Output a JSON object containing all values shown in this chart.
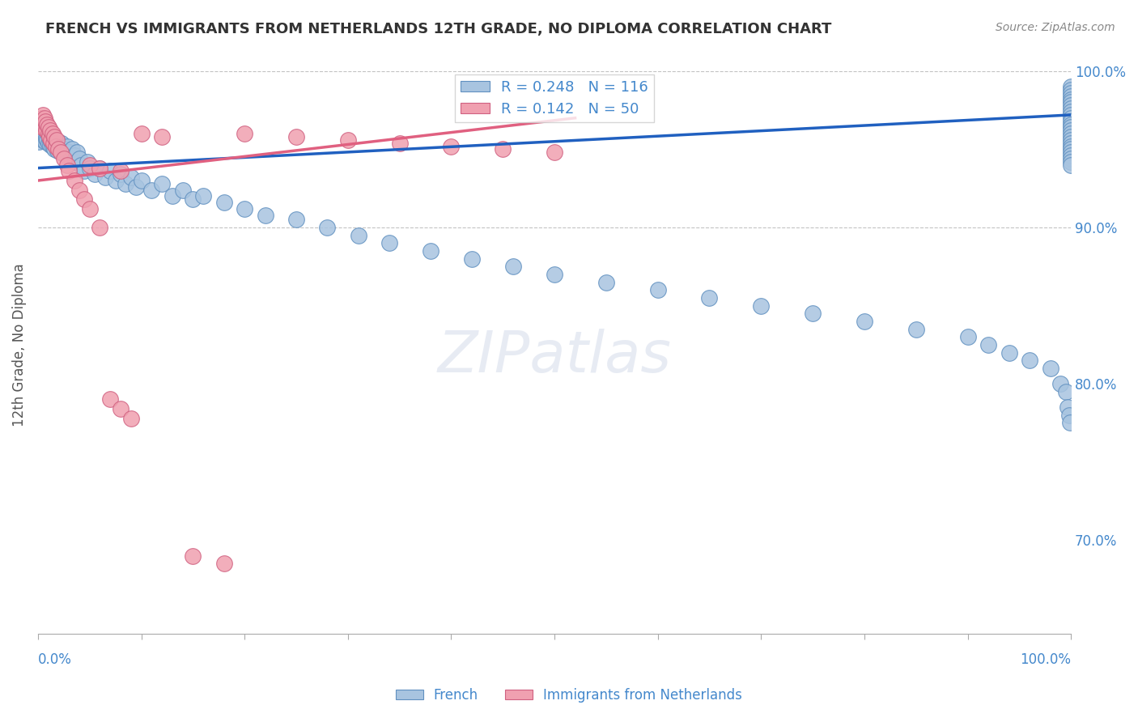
{
  "title": "FRENCH VS IMMIGRANTS FROM NETHERLANDS 12TH GRADE, NO DIPLOMA CORRELATION CHART",
  "source": "Source: ZipAtlas.com",
  "ylabel": "12th Grade, No Diploma",
  "right_yticks": [
    70.0,
    80.0,
    90.0,
    100.0
  ],
  "legend_entries": [
    {
      "label": "French",
      "color": "#a8c4e0",
      "R": 0.248,
      "N": 116
    },
    {
      "label": "Immigrants from Netherlands",
      "color": "#f0a0b0",
      "R": 0.142,
      "N": 50
    }
  ],
  "blue_line_color": "#2060c0",
  "pink_line_color": "#e06080",
  "scatter_blue": {
    "color": "#a8c4e0",
    "edge_color": "#6090c0",
    "x": [
      0.001,
      0.002,
      0.003,
      0.003,
      0.004,
      0.004,
      0.005,
      0.005,
      0.006,
      0.006,
      0.007,
      0.007,
      0.008,
      0.008,
      0.009,
      0.01,
      0.01,
      0.011,
      0.012,
      0.012,
      0.013,
      0.014,
      0.015,
      0.015,
      0.016,
      0.017,
      0.018,
      0.019,
      0.02,
      0.021,
      0.022,
      0.023,
      0.025,
      0.027,
      0.028,
      0.03,
      0.032,
      0.033,
      0.035,
      0.036,
      0.038,
      0.04,
      0.042,
      0.045,
      0.048,
      0.05,
      0.055,
      0.06,
      0.065,
      0.07,
      0.075,
      0.08,
      0.085,
      0.09,
      0.095,
      0.1,
      0.11,
      0.12,
      0.13,
      0.14,
      0.15,
      0.16,
      0.18,
      0.2,
      0.22,
      0.25,
      0.28,
      0.31,
      0.34,
      0.38,
      0.42,
      0.46,
      0.5,
      0.55,
      0.6,
      0.65,
      0.7,
      0.75,
      0.8,
      0.85,
      0.9,
      0.92,
      0.94,
      0.96,
      0.98,
      0.99,
      0.995,
      0.997,
      0.998,
      0.999,
      1.0,
      1.0,
      1.0,
      1.0,
      1.0,
      1.0,
      1.0,
      1.0,
      1.0,
      1.0,
      1.0,
      1.0,
      1.0,
      1.0,
      1.0,
      1.0,
      1.0,
      1.0,
      1.0,
      1.0,
      1.0,
      1.0,
      1.0,
      1.0,
      1.0,
      1.0
    ],
    "y": [
      0.955,
      0.96,
      0.958,
      0.962,
      0.957,
      0.963,
      0.956,
      0.961,
      0.958,
      0.964,
      0.955,
      0.96,
      0.957,
      0.963,
      0.956,
      0.954,
      0.959,
      0.957,
      0.953,
      0.96,
      0.955,
      0.952,
      0.958,
      0.954,
      0.95,
      0.956,
      0.953,
      0.949,
      0.955,
      0.951,
      0.948,
      0.954,
      0.95,
      0.946,
      0.952,
      0.948,
      0.944,
      0.95,
      0.946,
      0.942,
      0.948,
      0.944,
      0.94,
      0.936,
      0.942,
      0.938,
      0.934,
      0.938,
      0.932,
      0.936,
      0.93,
      0.934,
      0.928,
      0.932,
      0.926,
      0.93,
      0.924,
      0.928,
      0.92,
      0.924,
      0.918,
      0.92,
      0.916,
      0.912,
      0.908,
      0.905,
      0.9,
      0.895,
      0.89,
      0.885,
      0.88,
      0.875,
      0.87,
      0.865,
      0.86,
      0.855,
      0.85,
      0.845,
      0.84,
      0.835,
      0.83,
      0.825,
      0.82,
      0.815,
      0.81,
      0.8,
      0.795,
      0.785,
      0.78,
      0.775,
      0.99,
      0.988,
      0.986,
      0.984,
      0.982,
      0.98,
      0.978,
      0.976,
      0.974,
      0.972,
      0.97,
      0.968,
      0.966,
      0.964,
      0.962,
      0.96,
      0.958,
      0.956,
      0.954,
      0.952,
      0.95,
      0.948,
      0.946,
      0.944,
      0.942,
      0.94
    ]
  },
  "scatter_pink": {
    "color": "#f0a0b0",
    "edge_color": "#d06080",
    "x": [
      0.001,
      0.002,
      0.003,
      0.003,
      0.004,
      0.005,
      0.005,
      0.006,
      0.006,
      0.007,
      0.007,
      0.008,
      0.009,
      0.01,
      0.01,
      0.011,
      0.012,
      0.013,
      0.014,
      0.015,
      0.016,
      0.017,
      0.018,
      0.02,
      0.022,
      0.025,
      0.028,
      0.03,
      0.035,
      0.04,
      0.045,
      0.05,
      0.06,
      0.07,
      0.08,
      0.09,
      0.1,
      0.12,
      0.15,
      0.18,
      0.2,
      0.25,
      0.3,
      0.35,
      0.4,
      0.45,
      0.5,
      0.05,
      0.06,
      0.08
    ],
    "y": [
      0.965,
      0.968,
      0.966,
      0.97,
      0.964,
      0.968,
      0.972,
      0.966,
      0.97,
      0.964,
      0.968,
      0.962,
      0.966,
      0.96,
      0.964,
      0.958,
      0.962,
      0.956,
      0.96,
      0.954,
      0.958,
      0.952,
      0.956,
      0.95,
      0.948,
      0.944,
      0.94,
      0.936,
      0.93,
      0.924,
      0.918,
      0.912,
      0.9,
      0.79,
      0.784,
      0.778,
      0.96,
      0.958,
      0.69,
      0.685,
      0.96,
      0.958,
      0.956,
      0.954,
      0.952,
      0.95,
      0.948,
      0.94,
      0.938,
      0.936
    ]
  },
  "blue_regression": {
    "x_start": 0.0,
    "y_start": 0.938,
    "x_end": 1.0,
    "y_end": 0.972
  },
  "pink_regression": {
    "x_start": 0.0,
    "y_start": 0.93,
    "x_end": 0.52,
    "y_end": 0.97
  },
  "xmin": 0.0,
  "xmax": 1.0,
  "ymin": 0.64,
  "ymax": 1.01,
  "hline_y1": 1.0,
  "hline_y2": 0.9,
  "title_color": "#333333",
  "axis_color": "#4488cc",
  "source_color": "#888888"
}
